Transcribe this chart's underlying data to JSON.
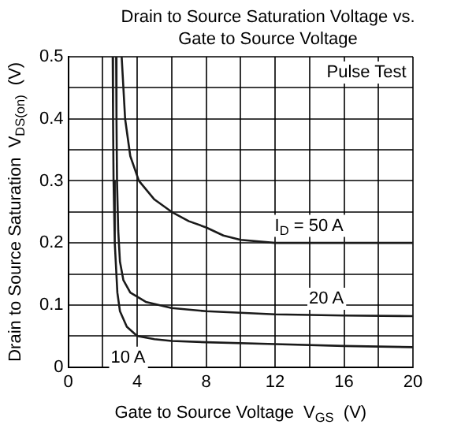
{
  "chart_data": {
    "type": "line",
    "title": "Drain to Source Saturation Voltage vs. Gate to Source Voltage",
    "xlabel": "Gate to Source Voltage  V$_{GS}$  (V)",
    "ylabel": "Drain to Source Saturation  V$_{DS(on)}$  (V)",
    "xlim": [
      0,
      20
    ],
    "xticks": [
      0,
      {
        "value": 2,
        "label": null
      },
      4,
      {
        "value": 6,
        "label": null
      },
      8,
      {
        "value": 10,
        "label": null
      },
      12,
      {
        "value": 14,
        "label": null
      },
      16,
      {
        "value": 18,
        "label": null
      },
      20
    ],
    "ylim": [
      0,
      0.5
    ],
    "yticks": [
      0,
      {
        "value": 0.05,
        "label": null
      },
      0.1,
      {
        "value": 0.15,
        "label": null
      },
      0.2,
      {
        "value": 0.25,
        "label": null
      },
      0.3,
      {
        "value": 0.35,
        "label": null
      },
      0.4,
      {
        "value": 0.45,
        "label": null
      },
      0.5
    ],
    "grid": true,
    "series": [
      {
        "color": "#1a1a1a",
        "x": [
          2.58,
          2.6,
          2.63,
          2.7,
          2.85,
          3.0,
          3.4,
          4,
          5,
          6,
          8,
          12,
          16,
          20
        ],
        "values": [
          0.5,
          0.4,
          0.3,
          0.2,
          0.12,
          0.09,
          0.065,
          0.05,
          0.045,
          0.042,
          0.04,
          0.037,
          0.034,
          0.032
        ]
      },
      {
        "color": "#1a1a1a",
        "x": [
          2.78,
          2.8,
          2.83,
          2.9,
          3.0,
          3.2,
          3.6,
          4.5,
          6,
          8,
          12,
          16,
          20
        ],
        "values": [
          0.5,
          0.4,
          0.3,
          0.22,
          0.17,
          0.14,
          0.12,
          0.105,
          0.095,
          0.09,
          0.085,
          0.083,
          0.082
        ]
      },
      {
        "color": "#1a1a1a",
        "x": [
          3.1,
          3.2,
          3.3,
          3.6,
          4.1,
          5,
          6,
          7,
          8,
          9,
          10,
          12,
          16,
          20
        ],
        "values": [
          0.5,
          0.45,
          0.4,
          0.34,
          0.3,
          0.27,
          0.25,
          0.235,
          0.225,
          0.212,
          0.205,
          0.2,
          0.2,
          0.2
        ]
      }
    ],
    "annotations": [
      "Pulse Test",
      "I$_{D}$ = 50 A",
      {
        "text": "20 A",
        "x": 15,
        "y": 0.11
      },
      {
        "text": "10 A",
        "x": 3.5,
        "y": 0.015
      }
    ]
  }
}
